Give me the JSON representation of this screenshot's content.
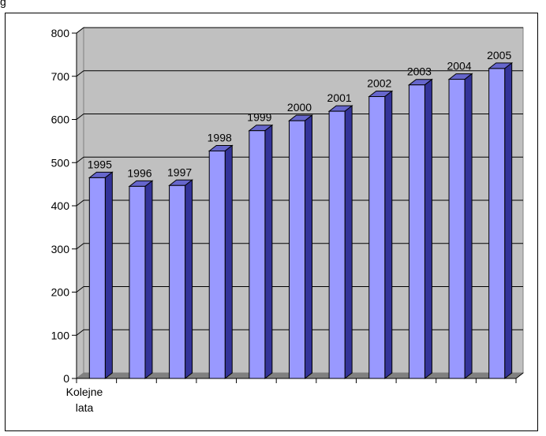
{
  "header": {
    "text": "g"
  },
  "chart_data": {
    "type": "bar",
    "categories": [
      "Kolejne lata"
    ],
    "series": [
      {
        "values": [
          465
        ]
      },
      {
        "values": [
          445
        ]
      },
      {
        "values": [
          447
        ]
      },
      {
        "values": [
          527
        ]
      },
      {
        "values": [
          574
        ]
      },
      {
        "values": [
          597
        ]
      },
      {
        "values": [
          619
        ]
      },
      {
        "values": [
          653
        ]
      },
      {
        "values": [
          680
        ]
      },
      {
        "values": [
          693
        ]
      },
      {
        "values": [
          718
        ]
      }
    ],
    "data_labels": [
      "1995",
      "1996",
      "1997",
      "1998",
      "1999",
      "2000",
      "2001",
      "2002",
      "2003",
      "2004",
      "2005"
    ],
    "ylim": [
      0,
      800
    ],
    "yticks": [
      0,
      100,
      200,
      300,
      400,
      500,
      600,
      700,
      800
    ],
    "grid": true,
    "three_d": true,
    "colors": {
      "bar_front": "#9999ff",
      "bar_side": "#333399",
      "bar_top": "#6666cc",
      "wall": "#c0c0c0",
      "floor": "#808080",
      "outline": "#000000"
    }
  }
}
